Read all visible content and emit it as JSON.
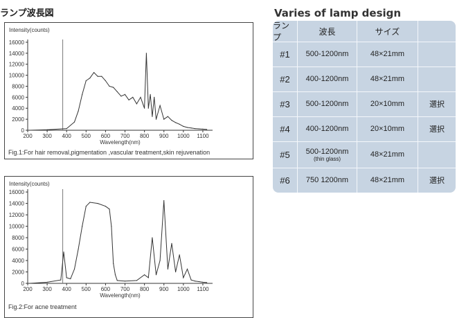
{
  "page_title": "ランプ波長図",
  "table": {
    "title": "Varies of lamp design",
    "headers": [
      "ランプ",
      "波長",
      "サイズ",
      ""
    ],
    "rows": [
      {
        "id": "#1",
        "wavelength": "500-1200nm",
        "note": "",
        "size": "48×21mm",
        "select": ""
      },
      {
        "id": "#2",
        "wavelength": "400-1200nm",
        "note": "",
        "size": "48×21mm",
        "select": ""
      },
      {
        "id": "#3",
        "wavelength": "500-1200nm",
        "note": "",
        "size": "20×10mm",
        "select": "選択"
      },
      {
        "id": "#4",
        "wavelength": "400-1200nm",
        "note": "",
        "size": "20×10mm",
        "select": "選択"
      },
      {
        "id": "#5",
        "wavelength": "500-1200nm",
        "note": "(thin glass)",
        "size": "48×21mm",
        "select": ""
      },
      {
        "id": "#6",
        "wavelength": "750 1200nm",
        "note": "",
        "size": "48×21mm",
        "select": "選択"
      }
    ]
  },
  "chart_data": [
    {
      "type": "line",
      "ylabel": "Intensity(counts)",
      "xlabel": "Wavelength(nm)",
      "caption": "Fig.1:For hair removal,pigmentation ,vascular treatment,skin rejuvenation",
      "xlim": [
        200,
        1150
      ],
      "ylim": [
        0,
        16500
      ],
      "xticks": [
        200,
        300,
        400,
        500,
        600,
        700,
        800,
        900,
        1000,
        1100
      ],
      "yticks": [
        0,
        2000,
        4000,
        6000,
        8000,
        10000,
        12000,
        14000,
        16000
      ],
      "marker_line_x": 380,
      "x": [
        210,
        300,
        400,
        440,
        460,
        480,
        500,
        520,
        540,
        560,
        580,
        600,
        620,
        640,
        660,
        680,
        700,
        720,
        740,
        760,
        780,
        800,
        810,
        820,
        830,
        840,
        850,
        860,
        880,
        900,
        920,
        940,
        960,
        980,
        1000,
        1020,
        1040,
        1060,
        1080,
        1100,
        1120
      ],
      "y": [
        0,
        100,
        300,
        1500,
        3500,
        6500,
        9000,
        9500,
        10500,
        9800,
        9800,
        9000,
        8000,
        7800,
        7000,
        6200,
        6500,
        5500,
        6000,
        4800,
        6000,
        4000,
        14000,
        4000,
        6500,
        2500,
        6000,
        2000,
        4500,
        2000,
        2500,
        1800,
        1400,
        1100,
        700,
        500,
        400,
        300,
        250,
        200,
        150
      ]
    },
    {
      "type": "line",
      "ylabel": "Intensity(counts)",
      "xlabel": "Wavelength(nm)",
      "caption": "Fig.2:For acne treatment",
      "xlim": [
        200,
        1150
      ],
      "ylim": [
        0,
        16500
      ],
      "xticks": [
        200,
        300,
        400,
        500,
        600,
        700,
        800,
        900,
        1000,
        1100
      ],
      "yticks": [
        0,
        2000,
        4000,
        6000,
        8000,
        10000,
        12000,
        14000,
        16000
      ],
      "marker_line_x": 380,
      "x": [
        210,
        300,
        370,
        385,
        400,
        420,
        440,
        460,
        480,
        500,
        520,
        560,
        600,
        620,
        630,
        640,
        650,
        660,
        700,
        760,
        800,
        820,
        840,
        860,
        880,
        900,
        920,
        940,
        960,
        980,
        1000,
        1020,
        1040,
        1060,
        1080,
        1100,
        1120
      ],
      "y": [
        0,
        200,
        600,
        5500,
        1000,
        800,
        2500,
        6000,
        10000,
        13500,
        14200,
        14000,
        13500,
        13000,
        10000,
        3500,
        1500,
        500,
        400,
        500,
        1500,
        1000,
        8000,
        1500,
        4000,
        14500,
        2500,
        7000,
        2000,
        5000,
        1000,
        2500,
        600,
        400,
        300,
        200,
        150
      ]
    }
  ]
}
